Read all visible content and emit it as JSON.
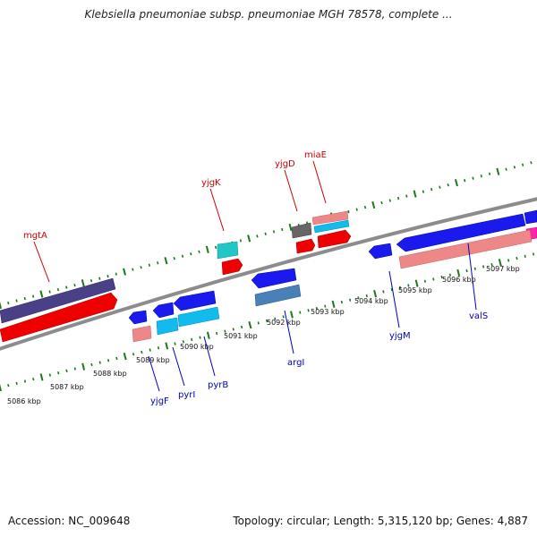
{
  "title": "Klebsiella pneumoniae subsp. pneumoniae MGH 78578, complete ...",
  "accession_text": "Accession: NC_009648",
  "summary_text": "Topology: circular; Length: 5,315,120 bp; Genes: 4,887",
  "colors": {
    "backbone": "#8c8c8c",
    "tick_dot": "#1a7a1a",
    "label_red": "#cc0000",
    "label_blue": "#0000bb"
  },
  "scale_labels": [
    {
      "name": "scale-5086-kbp",
      "text": "5086 kbp"
    },
    {
      "name": "scale-5087-kbp",
      "text": "5087 kbp"
    },
    {
      "name": "scale-5088-kbp",
      "text": "5088 kbp"
    },
    {
      "name": "scale-5089-kbp",
      "text": "5089 kbp"
    },
    {
      "name": "scale-5090-kbp",
      "text": "5090 kbp"
    },
    {
      "name": "scale-5091-kbp",
      "text": "5091 kbp"
    },
    {
      "name": "scale-5092-kbp",
      "text": "5092 kbp"
    },
    {
      "name": "scale-5093-kbp",
      "text": "5093 kbp"
    },
    {
      "name": "scale-5094-kbp",
      "text": "5094 kbp"
    },
    {
      "name": "scale-5095-kbp",
      "text": "5095 kbp"
    },
    {
      "name": "scale-5096-kbp",
      "text": "5096 kbp"
    },
    {
      "name": "scale-5097-kbp",
      "text": "5097 kbp"
    }
  ],
  "gene_labels": [
    {
      "name": "gene-label-mgtA",
      "text": "mgtA",
      "strand": "forward"
    },
    {
      "name": "gene-label-yjgK",
      "text": "yjgK",
      "strand": "forward"
    },
    {
      "name": "gene-label-yjgD",
      "text": "yjgD",
      "strand": "forward"
    },
    {
      "name": "gene-label-miaE",
      "text": "miaE",
      "strand": "forward"
    },
    {
      "name": "gene-label-yjgF",
      "text": "yjgF",
      "strand": "reverse"
    },
    {
      "name": "gene-label-pyrI",
      "text": "pyrI",
      "strand": "reverse"
    },
    {
      "name": "gene-label-pyrB",
      "text": "pyrB",
      "strand": "reverse"
    },
    {
      "name": "gene-label-argI",
      "text": "argI",
      "strand": "reverse"
    },
    {
      "name": "gene-label-yjgM",
      "text": "yjgM",
      "strand": "reverse"
    },
    {
      "name": "gene-label-valS",
      "text": "valS",
      "strand": "reverse"
    }
  ]
}
